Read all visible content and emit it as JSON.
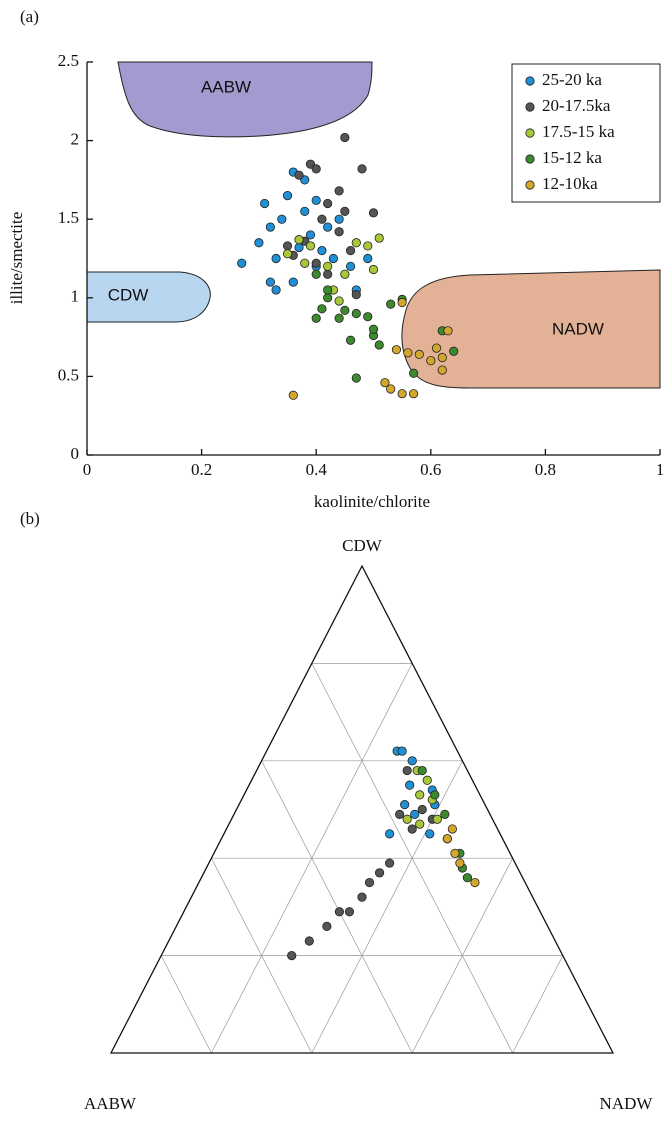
{
  "chart_data": [
    {
      "type": "scatter",
      "panel_label": "(a)",
      "x_label": "kaolinite/chlorite",
      "y_label": "illite/smectite",
      "xlim": [
        0,
        1
      ],
      "ylim": [
        0,
        2.5
      ],
      "xticks": [
        0,
        0.2,
        0.4,
        0.6,
        0.8,
        1
      ],
      "yticks": [
        0,
        0.5,
        1,
        1.5,
        2,
        2.5
      ],
      "legend": "upper right",
      "annotations": [
        "AABW",
        "CDW",
        "NADW"
      ],
      "series": [
        {
          "name": "25-20 ka",
          "color": "#1f8fd6",
          "x": [
            0.27,
            0.3,
            0.31,
            0.32,
            0.33,
            0.34,
            0.35,
            0.36,
            0.37,
            0.38,
            0.38,
            0.39,
            0.4,
            0.41,
            0.42,
            0.44,
            0.46,
            0.47,
            0.49,
            0.32,
            0.36,
            0.43,
            0.33,
            0.4
          ],
          "values": [
            1.22,
            1.35,
            1.6,
            1.1,
            1.25,
            1.5,
            1.65,
            1.8,
            1.32,
            1.55,
            1.75,
            1.4,
            1.2,
            1.3,
            1.45,
            1.5,
            1.2,
            1.05,
            1.25,
            1.45,
            1.1,
            1.25,
            1.05,
            1.62
          ]
        },
        {
          "name": "20-17.5ka",
          "color": "#555555",
          "x": [
            0.37,
            0.39,
            0.4,
            0.44,
            0.45,
            0.48,
            0.5,
            0.42,
            0.41,
            0.35,
            0.38,
            0.44,
            0.46,
            0.42,
            0.47,
            0.4,
            0.36,
            0.45
          ],
          "values": [
            1.78,
            1.85,
            1.82,
            1.68,
            2.02,
            1.82,
            1.54,
            1.6,
            1.5,
            1.33,
            1.36,
            1.42,
            1.3,
            1.15,
            1.02,
            1.22,
            1.27,
            1.55
          ]
        },
        {
          "name": "17.5-15 ka",
          "color": "#a8c83a",
          "x": [
            0.35,
            0.37,
            0.39,
            0.42,
            0.43,
            0.47,
            0.49,
            0.51,
            0.45,
            0.38,
            0.44,
            0.5
          ],
          "values": [
            1.28,
            1.37,
            1.33,
            1.2,
            1.05,
            1.35,
            1.33,
            1.38,
            1.15,
            1.22,
            0.98,
            1.18
          ]
        },
        {
          "name": "15-12 ka",
          "color": "#3d8a2e",
          "x": [
            0.4,
            0.41,
            0.42,
            0.4,
            0.44,
            0.45,
            0.47,
            0.49,
            0.5,
            0.51,
            0.53,
            0.55,
            0.47,
            0.42,
            0.46,
            0.57,
            0.62,
            0.64,
            0.5
          ],
          "values": [
            1.15,
            0.93,
            1.0,
            0.87,
            0.87,
            0.92,
            0.9,
            0.88,
            0.76,
            0.7,
            0.96,
            0.99,
            0.49,
            1.05,
            0.73,
            0.52,
            0.79,
            0.66,
            0.8
          ]
        },
        {
          "name": "12-10ka",
          "color": "#d4a72c",
          "x": [
            0.36,
            0.52,
            0.53,
            0.55,
            0.57,
            0.54,
            0.56,
            0.58,
            0.6,
            0.61,
            0.62,
            0.63,
            0.62,
            0.55
          ],
          "values": [
            0.38,
            0.46,
            0.42,
            0.39,
            0.39,
            0.67,
            0.65,
            0.64,
            0.6,
            0.68,
            0.62,
            0.79,
            0.54,
            0.97
          ]
        }
      ]
    },
    {
      "type": "ternary",
      "panel_label": "(b)",
      "corners": {
        "top": "CDW",
        "left": "AABW",
        "right": "NADW"
      },
      "lim": [
        0,
        100
      ],
      "grid": [
        20,
        40,
        60,
        80
      ],
      "series": [
        {
          "color": "#555555",
          "points": [
            [
              20,
              54,
              26
            ],
            [
              23,
              49,
              28
            ],
            [
              26,
              44,
              30
            ],
            [
              29,
              40,
              31
            ],
            [
              29,
              38,
              33
            ],
            [
              32,
              34,
              34
            ],
            [
              35,
              31,
              34
            ],
            [
              37,
              28,
              35
            ],
            [
              39,
              25,
              36
            ],
            [
              49,
              18,
              33
            ],
            [
              58,
              12,
              30
            ],
            [
              50,
              13,
              37
            ],
            [
              48,
              12,
              40
            ],
            [
              46,
              17,
              37
            ]
          ]
        },
        {
          "color": "#1f8fd6",
          "points": [
            [
              62,
              12,
              26
            ],
            [
              62,
              11,
              27
            ],
            [
              55,
              13,
              32
            ],
            [
              51,
              16,
              33
            ],
            [
              45,
              22,
              33
            ],
            [
              45,
              14,
              41
            ],
            [
              51,
              10,
              39
            ],
            [
              49,
              15,
              36
            ],
            [
              54,
              9,
              37
            ],
            [
              60,
              10,
              30
            ]
          ]
        },
        {
          "color": "#a8c83a",
          "points": [
            [
              58,
              10,
              32
            ],
            [
              53,
              12,
              35
            ],
            [
              56,
              9,
              35
            ],
            [
              47,
              15,
              38
            ],
            [
              48,
              11,
              41
            ],
            [
              44,
              11,
              45
            ],
            [
              48,
              17,
              35
            ],
            [
              52,
              10,
              38
            ]
          ]
        },
        {
          "color": "#3d8a2e",
          "points": [
            [
              58,
              9,
              33
            ],
            [
              53,
              9,
              38
            ],
            [
              49,
              9,
              42
            ],
            [
              41,
              10,
              49
            ],
            [
              38,
              11,
              51
            ],
            [
              36,
              11,
              53
            ]
          ]
        },
        {
          "color": "#d4a72c",
          "points": [
            [
              44,
              11,
              45
            ],
            [
              41,
              11,
              48
            ],
            [
              39,
              11,
              50
            ],
            [
              35,
              10,
              55
            ],
            [
              46,
              9,
              45
            ]
          ]
        }
      ]
    }
  ]
}
